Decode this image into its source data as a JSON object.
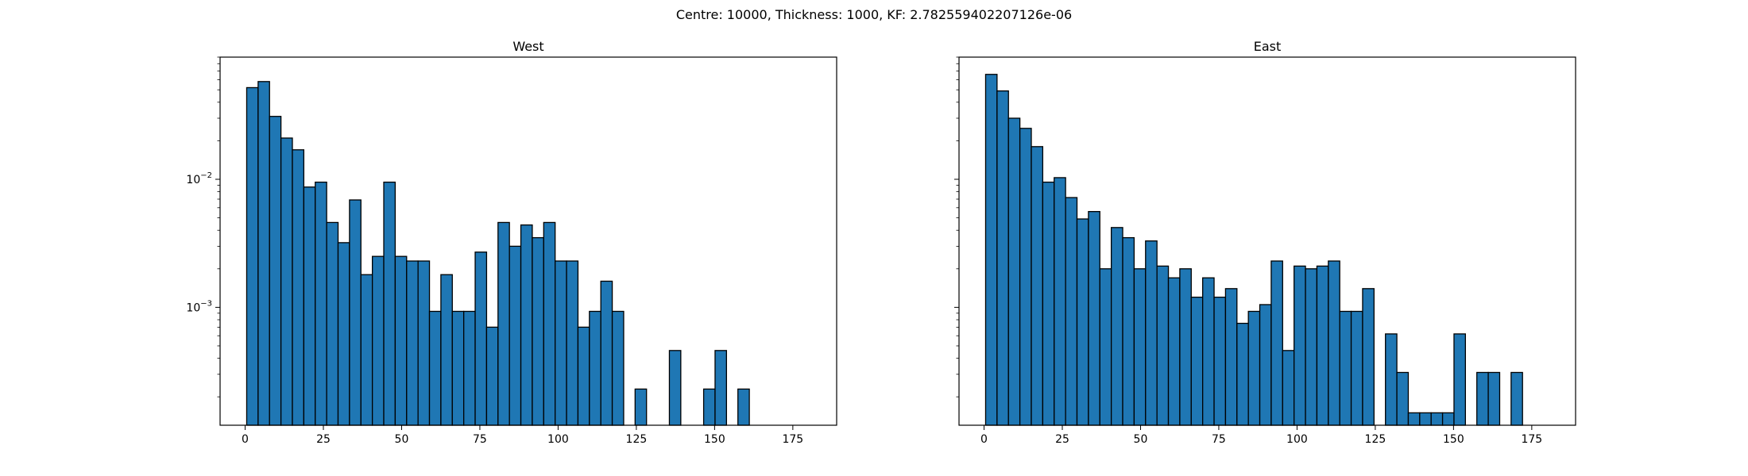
{
  "suptitle": "Centre: 10000, Thickness: 1000, KF: 2.782559402207126e-06",
  "colors": {
    "bar_fill": "#1f77b4",
    "bar_edge": "#000000"
  },
  "chart_data": [
    {
      "type": "bar",
      "subtype": "histogram",
      "title": "West",
      "xlabel": "",
      "ylabel": "",
      "yscale": "log",
      "xlim": [
        -8,
        189
      ],
      "ylim": [
        0.00012,
        0.09
      ],
      "x_ticks": [
        0,
        25,
        50,
        75,
        100,
        125,
        150,
        175
      ],
      "y_ticks": [
        {
          "value": 0.01,
          "base": "10",
          "exp": "−2"
        },
        {
          "value": 0.001,
          "base": "10",
          "exp": "−3"
        }
      ],
      "bin_width": 3.65,
      "bin_start": 0.5,
      "values": [
        0.052,
        0.058,
        0.031,
        0.021,
        0.017,
        0.0087,
        0.0095,
        0.0046,
        0.0032,
        0.0069,
        0.0018,
        0.0025,
        0.0095,
        0.0025,
        0.0023,
        0.0023,
        0.00093,
        0.0018,
        0.00093,
        0.00093,
        0.0027,
        0.0007,
        0.0046,
        0.003,
        0.0044,
        0.0035,
        0.0046,
        0.0023,
        0.0023,
        0.0007,
        0.00093,
        0.0016,
        0.00093,
        0,
        0.00023,
        0,
        0,
        0.00046,
        0,
        0,
        0.00023,
        0.00046,
        0,
        0.00023,
        0,
        0,
        0,
        0,
        0
      ]
    },
    {
      "type": "bar",
      "subtype": "histogram",
      "title": "East",
      "xlabel": "",
      "ylabel": "",
      "yscale": "log",
      "xlim": [
        -8,
        189
      ],
      "ylim": [
        0.00012,
        0.09
      ],
      "x_ticks": [
        0,
        25,
        50,
        75,
        100,
        125,
        150,
        175
      ],
      "y_ticks": [],
      "bin_width": 3.65,
      "bin_start": 0.5,
      "values": [
        0.066,
        0.049,
        0.03,
        0.025,
        0.018,
        0.0095,
        0.0103,
        0.0072,
        0.0049,
        0.0056,
        0.002,
        0.0042,
        0.0035,
        0.002,
        0.0033,
        0.0021,
        0.0017,
        0.002,
        0.0012,
        0.0017,
        0.0012,
        0.0014,
        0.00075,
        0.00093,
        0.00105,
        0.0023,
        0.00046,
        0.0021,
        0.002,
        0.0021,
        0.0023,
        0.00093,
        0.00093,
        0.0014,
        0,
        0.00062,
        0.00031,
        0.00015,
        0.00015,
        0.00015,
        0.00015,
        0.00062,
        0,
        0.00031,
        0.00031,
        0,
        0.00031,
        0,
        0
      ]
    }
  ]
}
